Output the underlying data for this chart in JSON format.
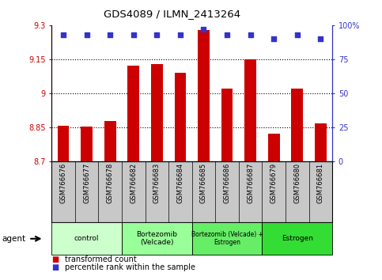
{
  "title": "GDS4089 / ILMN_2413264",
  "samples": [
    "GSM766676",
    "GSM766677",
    "GSM766678",
    "GSM766682",
    "GSM766683",
    "GSM766684",
    "GSM766685",
    "GSM766686",
    "GSM766687",
    "GSM766679",
    "GSM766680",
    "GSM766681"
  ],
  "bar_values": [
    8.855,
    8.851,
    8.878,
    9.12,
    9.13,
    9.09,
    9.28,
    9.02,
    9.15,
    8.82,
    9.02,
    8.865
  ],
  "dot_values": [
    93,
    93,
    93,
    93,
    93,
    93,
    97,
    93,
    93,
    90,
    93,
    90
  ],
  "bar_color": "#CC0000",
  "dot_color": "#3333CC",
  "ymin": 8.7,
  "ymax": 9.3,
  "yticks": [
    8.7,
    8.85,
    9.0,
    9.15,
    9.3
  ],
  "ytick_labels": [
    "8.7",
    "8.85",
    "9",
    "9.15",
    "9.3"
  ],
  "y2min": 0,
  "y2max": 100,
  "y2ticks": [
    0,
    25,
    50,
    75,
    100
  ],
  "y2tick_labels": [
    "0",
    "25",
    "50",
    "75",
    "100%"
  ],
  "groups": [
    {
      "label": "control",
      "start": 0,
      "end": 3,
      "color": "#ccffcc"
    },
    {
      "label": "Bortezomib\n(Velcade)",
      "start": 3,
      "end": 6,
      "color": "#99ff99"
    },
    {
      "label": "Bortezomib (Velcade) +\nEstrogen",
      "start": 6,
      "end": 9,
      "color": "#66ee66"
    },
    {
      "label": "Estrogen",
      "start": 9,
      "end": 12,
      "color": "#33dd33"
    }
  ],
  "agent_label": "agent",
  "legend_bar": "transformed count",
  "legend_dot": "percentile rank within the sample",
  "sample_bg": "#c8c8c8",
  "plot_bg": "#ffffff",
  "dotted_yticks": [
    8.85,
    9.0,
    9.15
  ]
}
